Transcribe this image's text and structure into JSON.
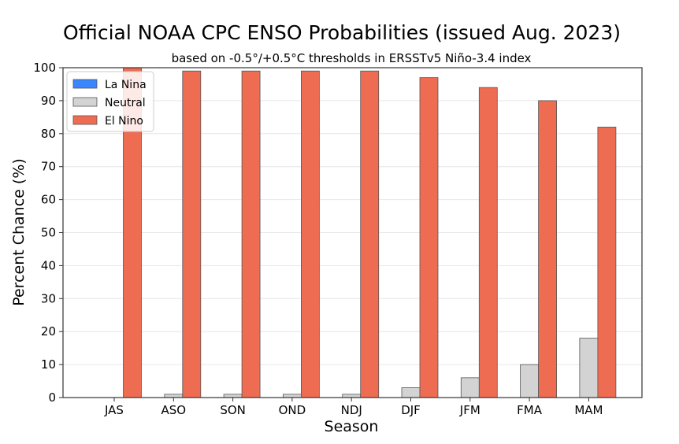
{
  "chart_data": {
    "type": "bar",
    "title": "Official NOAA CPC ENSO Probabilities (issued Aug. 2023)",
    "subtitle": "based on -0.5°/+0.5°C thresholds in ERSSTv5 Niño-3.4 index",
    "xlabel": "Season",
    "ylabel": "Percent Chance (%)",
    "ylim": [
      0,
      100
    ],
    "yticks": [
      0,
      10,
      20,
      30,
      40,
      50,
      60,
      70,
      80,
      90,
      100
    ],
    "grid": "horizontal",
    "legend_position": "top-left",
    "categories": [
      "JAS",
      "ASO",
      "SON",
      "OND",
      "NDJ",
      "DJF",
      "JFM",
      "FMA",
      "MAM"
    ],
    "series": [
      {
        "name": "La Nina",
        "color": "#3a86ff",
        "values": [
          0,
          0,
          0,
          0,
          0,
          0,
          0,
          0,
          0
        ]
      },
      {
        "name": "Neutral",
        "color": "#d3d3d3",
        "values": [
          0,
          1,
          1,
          1,
          1,
          3,
          6,
          10,
          18
        ]
      },
      {
        "name": "El Nino",
        "color": "#ee6c52",
        "values": [
          100,
          99,
          99,
          99,
          99,
          97,
          94,
          90,
          82
        ]
      }
    ]
  }
}
